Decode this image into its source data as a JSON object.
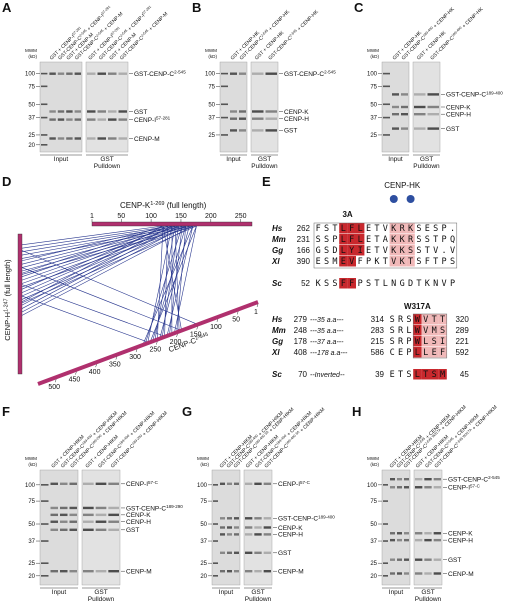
{
  "panels": {
    "A": {
      "letter": "A",
      "mw_title": [
        "MWM",
        "(kD)"
      ],
      "mw": [
        100,
        75,
        50,
        37,
        25,
        20
      ],
      "lanes": [
        [
          "GST + CENP-I",
          "57-281"
        ],
        [
          "GST-CENP-C",
          "2-545",
          " + CENP-I",
          "57-281"
        ],
        [
          "GST + CENP-M"
        ],
        [
          "GST-CENP-C",
          "2-545",
          " + CENP-M"
        ]
      ],
      "bands": [
        [
          "GST-CENP-C",
          "2-545"
        ],
        [
          "GST"
        ],
        [
          "CENP-I",
          "57-281"
        ],
        [
          "CENP-M"
        ]
      ],
      "input": "Input",
      "pulldown": [
        "GST",
        "Pulldown"
      ]
    },
    "B": {
      "letter": "B",
      "mw_title": [
        "MWM",
        "(kD)"
      ],
      "mw": [
        100,
        75,
        50,
        37,
        25
      ],
      "lanes": [
        [
          "GST + CENP-HK"
        ],
        [
          "GST-CENP-C",
          "2-545",
          " + CENP-HK"
        ]
      ],
      "bands": [
        [
          "GST-CENP-C",
          "2-545"
        ],
        [
          "CENP-K"
        ],
        [
          "CENP-H"
        ],
        [
          "GST"
        ]
      ],
      "input": "Input",
      "pulldown": [
        "GST",
        "Pulldown"
      ]
    },
    "C": {
      "letter": "C",
      "mw_title": [
        "MWM",
        "(kD)"
      ],
      "mw": [
        100,
        75,
        50,
        37,
        25
      ],
      "lanes": [
        [
          "GST + CENP-HK"
        ],
        [
          "GST-CENP-C",
          "189-400",
          " + CENP-HK"
        ]
      ],
      "bands": [
        [
          "GST-CENP-C",
          "189-400"
        ],
        [
          "CENP-K"
        ],
        [
          "CENP-H"
        ],
        [
          "GST"
        ]
      ],
      "input": "Input",
      "pulldown": [
        "GST",
        "Pulldown"
      ]
    },
    "D": {
      "letter": "D",
      "k_label": [
        "CENP-K",
        "1-269",
        " (full length)"
      ],
      "k_ticks": [
        1,
        50,
        100,
        150,
        200,
        250
      ],
      "h_label": [
        "CENP-H",
        "1-247",
        " (full length)"
      ],
      "c_label": [
        "CENP-C",
        "2-545"
      ],
      "c_ticks": [
        1,
        50,
        100,
        150,
        200,
        250,
        300,
        350,
        400,
        450,
        500
      ]
    },
    "E": {
      "letter": "E",
      "hk_label": "CENP-HK",
      "mut1": "3A",
      "mut2": "W317A",
      "top": [
        {
          "species": "Hs",
          "start": "262",
          "seq": "FSTLFLETVKRKSESP."
        },
        {
          "species": "Mm",
          "start": "231",
          "seq": "SSPLFLETAKKRSSTPQ"
        },
        {
          "species": "Gg",
          "start": "166",
          "seq": "GSDLYIETVKKSSTV.V"
        },
        {
          "species": "Xl",
          "start": "390",
          "seq": "ESMEVFPKTVKTSFTPS"
        },
        {
          "species": "Sc",
          "start": "52",
          "seq": "KSSFFPSTLNGDTKNVP"
        }
      ],
      "bottom": [
        {
          "species": "Hs",
          "start": "279",
          "gap": "---35 a.a---",
          "mid": "314",
          "seq": "SRSWVTT",
          "end": "320"
        },
        {
          "species": "Mm",
          "start": "248",
          "gap": "---35 a.a---",
          "mid": "283",
          "seq": "SRLWVMS",
          "end": "289"
        },
        {
          "species": "Gg",
          "start": "178",
          "gap": "---37 a.a---",
          "mid": "215",
          "seq": "SRPWLSI",
          "end": "221"
        },
        {
          "species": "Xl",
          "start": "408",
          "gap": "---178 a.a---",
          "mid": "586",
          "seq": "CEPLLEF",
          "end": "592"
        },
        {
          "species": "Sc",
          "start": "70",
          "gap": "--Inverted--",
          "mid": "39",
          "seq": "ETSLTSM",
          "end": "45"
        }
      ]
    },
    "F": {
      "letter": "F",
      "mw_title": [
        "MWM",
        "(kD)"
      ],
      "mw": [
        100,
        75,
        50,
        37,
        25,
        20
      ],
      "lanes": [
        [
          "GST + CENP-HIKM"
        ],
        [
          "GST-CENP-C",
          "189-400",
          " + CENP-HIKM"
        ],
        [
          "GST-CENP-C",
          "189-290",
          " + CENP-HIKM"
        ]
      ],
      "bands": [
        [
          "CENP-I",
          "57-C"
        ],
        [
          "GST-CENP-C",
          "189-290"
        ],
        [
          "CENP-K"
        ],
        [
          "CENP-H"
        ],
        [
          "GST"
        ],
        [
          "CENP-M"
        ]
      ],
      "input": "Input",
      "pulldown": [
        "GST",
        "Pulldown"
      ]
    },
    "G": {
      "letter": "G",
      "mw_title": [
        "MWM",
        "(kD)"
      ],
      "mw": [
        100,
        75,
        50,
        37,
        25,
        20
      ],
      "lanes": [
        [
          "GST + CENP-HIKM"
        ],
        [
          "GST-CENP-C",
          "189-400",
          " + CENP-HIKM"
        ],
        [
          "GST-CENP-C",
          "189-400 3A",
          " + CENP-HIKM"
        ]
      ],
      "bands": [
        [
          "CENP-I",
          "57-C"
        ],
        [
          "GST-CENP-C",
          "189-400"
        ],
        [
          "CENP-K"
        ],
        [
          "CENP-H"
        ],
        [
          "GST"
        ],
        [
          "CENP-M"
        ]
      ],
      "input": "Input",
      "pulldown": [
        "GST",
        "Pulldown"
      ]
    },
    "H": {
      "letter": "H",
      "mw_title": [
        "MWM",
        "(kD)"
      ],
      "mw": [
        100,
        75,
        50,
        37,
        25,
        20
      ],
      "lanes": [
        [
          "GST + CENP-HIKM"
        ],
        [
          "GST-CENP-C",
          "2-545",
          " + CENP-HIKM"
        ],
        [
          "GST-CENP-C",
          "2-545 W317A",
          " + CENP-HIKM"
        ]
      ],
      "bands": [
        [
          "GST-CENP-C",
          "2-545"
        ],
        [
          "CENP-I",
          "57-C"
        ],
        [
          "CENP-K"
        ],
        [
          "CENP-H"
        ],
        [
          "GST"
        ],
        [
          "CENP-M"
        ]
      ],
      "input": "Input",
      "pulldown": [
        "GST",
        "Pulldown"
      ]
    }
  }
}
